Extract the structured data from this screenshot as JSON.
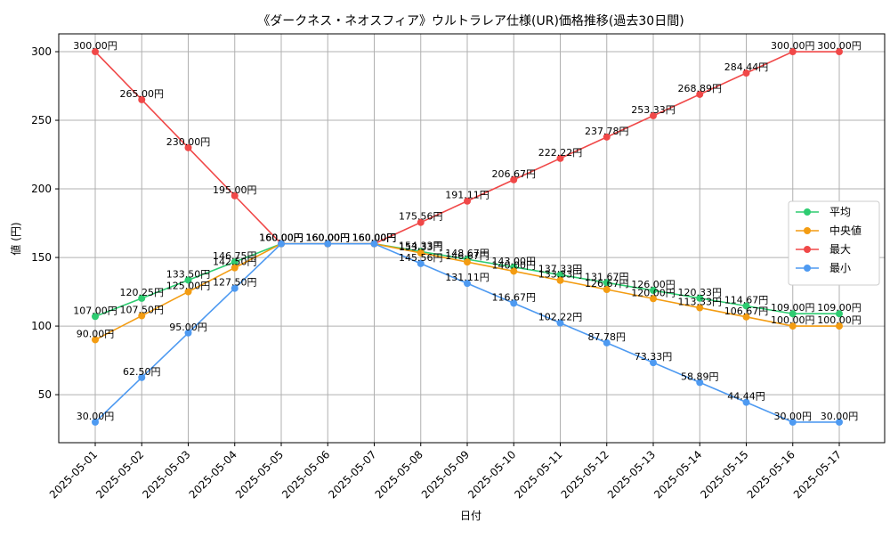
{
  "chart_data": {
    "type": "line",
    "title": "《ダークネス・ネオスフィア》ウルトラレア仕様(UR)価格推移(過去30日間)",
    "xlabel": "日付",
    "ylabel": "値 (円)",
    "categories": [
      "2025-05-01",
      "2025-05-02",
      "2025-05-03",
      "2025-05-04",
      "2025-05-05",
      "2025-05-06",
      "2025-05-07",
      "2025-05-08",
      "2025-05-09",
      "2025-05-10",
      "2025-05-11",
      "2025-05-12",
      "2025-05-13",
      "2025-05-14",
      "2025-05-15",
      "2025-05-16",
      "2025-05-17"
    ],
    "ylim": [
      15,
      313
    ],
    "yticks": [
      50,
      100,
      150,
      200,
      250,
      300
    ],
    "grid": true,
    "legend_position": "center-right",
    "series": [
      {
        "name": "平均",
        "color": "#2ecc71",
        "values": [
          107.0,
          120.25,
          133.5,
          146.75,
          160.0,
          160.0,
          160.0,
          154.33,
          148.67,
          143.0,
          137.33,
          131.67,
          126.0,
          120.33,
          114.67,
          109.0,
          109.0
        ],
        "labels": [
          "107.00円",
          "120.25円",
          "133.50円",
          "146.75円",
          "160.00円",
          "160.00円",
          "160.00円",
          "154.33円",
          "148.67円",
          "143.00円",
          "137.33円",
          "131.67円",
          "126.00円",
          "120.33円",
          "114.67円",
          "109.00円",
          "109.00円"
        ]
      },
      {
        "name": "中央値",
        "color": "#f39c12",
        "values": [
          90.0,
          107.5,
          125.0,
          142.5,
          160.0,
          160.0,
          160.0,
          153.33,
          146.67,
          140.0,
          133.33,
          126.67,
          120.0,
          113.33,
          106.67,
          100.0,
          100.0
        ],
        "labels": [
          "90.00円",
          "107.50円",
          "125.00円",
          "142.50円",
          "160.00円",
          "160.00円",
          "160.00円",
          "153.33円",
          "146.67円",
          "140.00円",
          "133.33円",
          "126.67円",
          "120.00円",
          "113.33円",
          "106.67円",
          "100.00円",
          "100.00円"
        ]
      },
      {
        "name": "最大",
        "color": "#f04848",
        "values": [
          300.0,
          265.0,
          230.0,
          195.0,
          160.0,
          160.0,
          160.0,
          175.56,
          191.11,
          206.67,
          222.22,
          237.78,
          253.33,
          268.89,
          284.44,
          300.0,
          300.0
        ],
        "labels": [
          "300.00円",
          "265.00円",
          "230.00円",
          "195.00円",
          "160.00円",
          "160.00円",
          "160.00円",
          "175.56円",
          "191.11円",
          "206.67円",
          "222.22円",
          "237.78円",
          "253.33円",
          "268.89円",
          "284.44円",
          "300.00円",
          "300.00円"
        ]
      },
      {
        "name": "最小",
        "color": "#4e9af1",
        "values": [
          30.0,
          62.5,
          95.0,
          127.5,
          160.0,
          160.0,
          160.0,
          145.56,
          131.11,
          116.67,
          102.22,
          87.78,
          73.33,
          58.89,
          44.44,
          30.0,
          30.0
        ],
        "labels": [
          "30.00円",
          "62.50円",
          "95.00円",
          "127.50円",
          "160.00円",
          "160.00円",
          "160.00円",
          "145.56円",
          "131.11円",
          "116.67円",
          "102.22円",
          "87.78円",
          "73.33円",
          "58.89円",
          "44.44円",
          "30.00円",
          "30.00円"
        ]
      }
    ]
  }
}
